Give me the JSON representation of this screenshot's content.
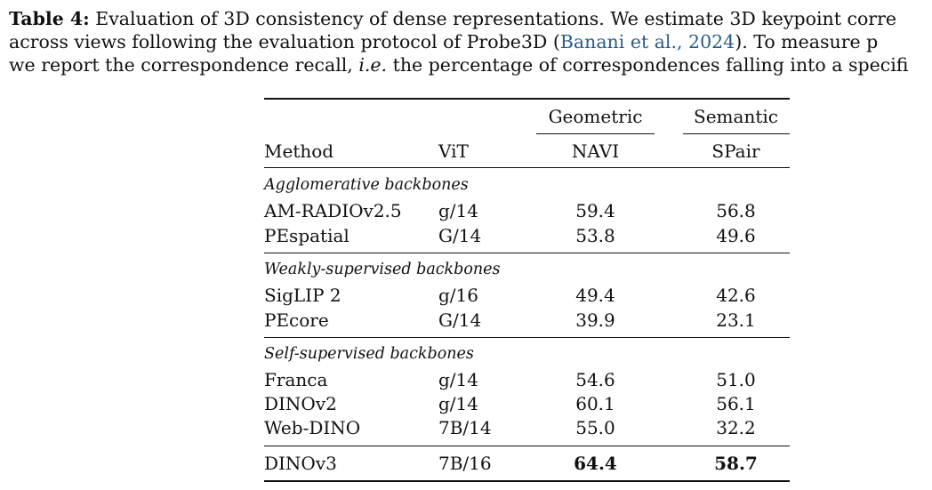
{
  "caption": {
    "label": "Table 4:",
    "line1_rest": " Evaluation of 3D consistency of dense representations. We estimate 3D keypoint corre",
    "line2_before": "across views following the evaluation protocol of Probe3D (",
    "line2_cite": "Banani et al., 2024",
    "line2_after": "). To measure p",
    "line3_before": "we report the correspondence recall, ",
    "line3_ie": "i.e.",
    "line3_after": " the percentage of correspondences falling into a specifi"
  },
  "table": {
    "header": {
      "group_geometric": "Geometric",
      "group_semantic": "Semantic",
      "method": "Method",
      "vit": "ViT",
      "navi": "NAVI",
      "spair": "SPair"
    },
    "groups": [
      {
        "title": "Agglomerative backbones",
        "rows": [
          {
            "method": "AM-RADIOv2.5",
            "vit": "g/14",
            "navi": "59.4",
            "spair": "56.8"
          },
          {
            "method": "PEspatial",
            "vit": "G/14",
            "navi": "53.8",
            "spair": "49.6"
          }
        ]
      },
      {
        "title": "Weakly-supervised backbones",
        "rows": [
          {
            "method": "SigLIP 2",
            "vit": "g/16",
            "navi": "49.4",
            "spair": "42.6"
          },
          {
            "method": "PEcore",
            "vit": "G/14",
            "navi": "39.9",
            "spair": "23.1"
          }
        ]
      },
      {
        "title": "Self-supervised backbones",
        "rows": [
          {
            "method": "Franca",
            "vit": "g/14",
            "navi": "54.6",
            "spair": "51.0"
          },
          {
            "method": "DINOv2",
            "vit": "g/14",
            "navi": "60.1",
            "spair": "56.1"
          },
          {
            "method": "Web-DINO",
            "vit": "7B/14",
            "navi": "55.0",
            "spair": "32.2"
          }
        ]
      }
    ],
    "final_row": {
      "method": "DINOv3",
      "vit": "7B/16",
      "navi": "64.4",
      "spair": "58.7"
    }
  }
}
